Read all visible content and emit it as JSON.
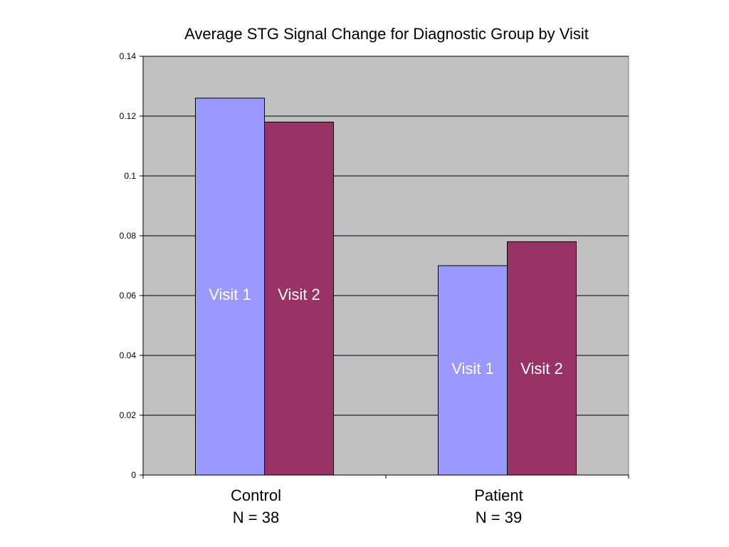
{
  "chart_data": {
    "type": "bar",
    "title": "Average STG Signal Change for Diagnostic Group by Visit",
    "categories": [
      "Control",
      "Patient"
    ],
    "category_sublabels": [
      "N = 38",
      "N = 39"
    ],
    "series": [
      {
        "name": "Visit 1",
        "values": [
          0.126,
          0.07
        ],
        "color": "#9999ff"
      },
      {
        "name": "Visit 2",
        "values": [
          0.118,
          0.078
        ],
        "color": "#993366"
      }
    ],
    "ylim": [
      0,
      0.14
    ],
    "yticks": [
      0,
      0.02,
      0.04,
      0.06,
      0.08,
      0.1,
      0.12,
      0.14
    ],
    "ytick_labels": [
      "0",
      "0.02",
      "0.04",
      "0.06",
      "0.08",
      "0.1",
      "0.12",
      "0.14"
    ],
    "grid": true,
    "legend": "none",
    "plot_background": "#c0c0c0",
    "bar_label_color": "#ffffff"
  }
}
